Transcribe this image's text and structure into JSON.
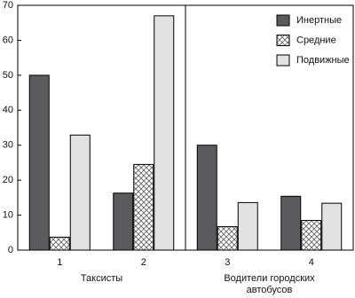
{
  "chart_data": {
    "type": "bar",
    "categories": [
      "1",
      "2",
      "3",
      "4"
    ],
    "group_labels": [
      [
        "Таксисты"
      ],
      [
        "Водители городских",
        "автобусов"
      ]
    ],
    "series": [
      {
        "name": "Инертные",
        "color": "#5b5b5e",
        "pattern": "solid",
        "values": [
          50,
          16.3,
          30,
          15.4
        ]
      },
      {
        "name": "Средние",
        "color": "#777777",
        "pattern": "crosshatch",
        "values": [
          3.7,
          24.5,
          6.7,
          8.5
        ]
      },
      {
        "name": "Подвижные",
        "color": "#e2e2e2",
        "pattern": "solid",
        "values": [
          32.9,
          67,
          13.6,
          13.4
        ]
      }
    ],
    "ylim": [
      0,
      70
    ],
    "yticks": [
      0,
      10,
      20,
      30,
      40,
      50,
      60,
      70
    ],
    "grid": false,
    "legend": "top-right"
  }
}
